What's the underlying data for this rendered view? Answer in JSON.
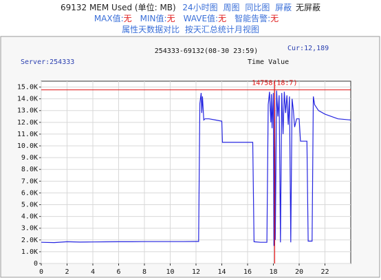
{
  "header": {
    "title": "69132 MEM Used (单位: MB)",
    "links": [
      "24小时图",
      "周图",
      "同比图",
      "屏蔽"
    ],
    "status": "无屏蔽",
    "stats": [
      {
        "label": "MAX值:",
        "value": "无"
      },
      {
        "label": "MIN值:",
        "value": "无"
      },
      {
        "label": "WAVE值:",
        "value": "无"
      },
      {
        "label": "智能告警:",
        "value": "无"
      }
    ],
    "links2": [
      "属性天数据对比",
      "按天汇总统计月视图"
    ]
  },
  "chart_data": {
    "type": "line",
    "title": "254333-69132(08-30 23:59)",
    "current": "Cur:12,189",
    "server": "Server:254333",
    "value_label": "Time Value",
    "x": [
      0,
      1,
      2,
      3,
      4,
      5,
      6,
      7,
      8,
      9,
      10,
      11,
      12,
      12.2,
      12.3,
      12.4,
      12.45,
      12.5,
      12.6,
      12.7,
      13,
      13.5,
      14,
      14.05,
      15,
      16,
      16.4,
      16.5,
      17,
      17.5,
      17.6,
      17.7,
      17.8,
      17.85,
      17.9,
      18,
      18.05,
      18.1,
      18.15,
      18.25,
      18.35,
      18.45,
      18.55,
      18.65,
      18.75,
      18.85,
      18.95,
      19.05,
      19.15,
      19.25,
      19.35,
      19.45,
      19.55,
      19.65,
      19.8,
      20,
      20.1,
      20.6,
      20.7,
      21,
      21.1,
      21.2,
      21.5,
      22,
      22.5,
      23,
      24
    ],
    "series": [
      {
        "name": "MEM Used",
        "color": "#2424e0",
        "values": [
          1800,
          1780,
          1850,
          1820,
          1830,
          1840,
          1850,
          1850,
          1860,
          1860,
          1860,
          1860,
          1870,
          1870,
          13600,
          14500,
          12800,
          14200,
          12200,
          12300,
          12300,
          12200,
          12100,
          10300,
          10300,
          10300,
          10300,
          1850,
          1800,
          1800,
          13500,
          14600,
          12000,
          14400,
          11500,
          14500,
          1500,
          13900,
          2000,
          14700,
          12500,
          14300,
          1800,
          14500,
          11000,
          14600,
          12800,
          14300,
          11800,
          14200,
          1800,
          14000,
          13000,
          11600,
          12300,
          12300,
          10400,
          10400,
          1900,
          1900,
          14200,
          13500,
          13000,
          12700,
          12500,
          12300,
          12200
        ]
      }
    ],
    "max_line": {
      "value": 14758,
      "x": 18.1,
      "label": "14758(18:7)",
      "color": "#e01010"
    },
    "xlim": [
      0,
      24
    ],
    "xticks": [
      0,
      2,
      4,
      6,
      8,
      10,
      12,
      14,
      16,
      18,
      20,
      22
    ],
    "ylim": [
      0,
      15500
    ],
    "yticks": [
      0,
      {
        "value": 1000,
        "label": "1.0K"
      },
      {
        "value": 2000,
        "label": "2.0K"
      },
      {
        "value": 3000,
        "label": "3.0K"
      },
      {
        "value": 4000,
        "label": "4.0K"
      },
      {
        "value": 5000,
        "label": "5.0K"
      },
      {
        "value": 6000,
        "label": "6.0K"
      },
      {
        "value": 7000,
        "label": "7.0K"
      },
      {
        "value": 8000,
        "label": "8.0K"
      },
      {
        "value": 9000,
        "label": "9.0K"
      },
      {
        "value": 10000,
        "label": "10.0K"
      },
      {
        "value": 11000,
        "label": "11.0K"
      },
      {
        "value": 12000,
        "label": "12.0K"
      },
      {
        "value": 13000,
        "label": "13.0K"
      },
      {
        "value": 14000,
        "label": "14.0K"
      },
      {
        "value": 15000,
        "label": "15.0K"
      }
    ],
    "grid": true
  }
}
